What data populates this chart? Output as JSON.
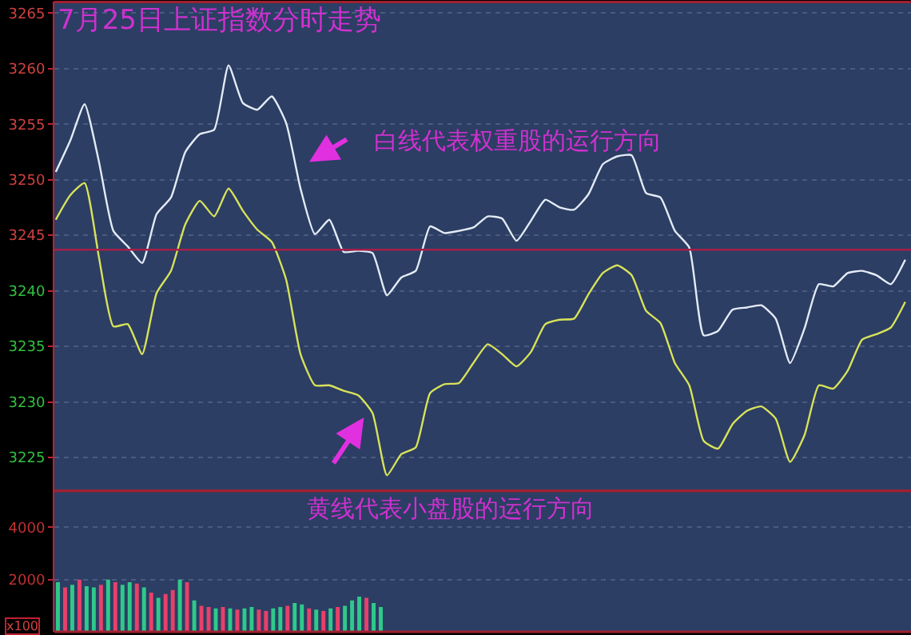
{
  "chart_data": [
    {
      "type": "line",
      "title": "7月25日上证指数分时走势",
      "categories": [
        null,
        null,
        null,
        null,
        null,
        null,
        null,
        null,
        null,
        null,
        null,
        null,
        null,
        null,
        null,
        null,
        null,
        null,
        null,
        null,
        null,
        null,
        null,
        null,
        null,
        null,
        null,
        null,
        null,
        null,
        null,
        null,
        null,
        null,
        null,
        null,
        null,
        null,
        null,
        null,
        null,
        null,
        null,
        null,
        null,
        null,
        null,
        null,
        null,
        null,
        null,
        null,
        null,
        null,
        null,
        null,
        null,
        null,
        null,
        null
      ],
      "series": [
        {
          "color": "#e4ebf7",
          "values": [
            3250.7,
            3253.5,
            3256.8,
            3251.6,
            3245.4,
            3244.0,
            3242.5,
            3246.9,
            3248.4,
            3252.5,
            3254.1,
            3254.5,
            3260.3,
            3256.9,
            3256.3,
            3257.5,
            3255.1,
            3249.2,
            3245.1,
            3246.4,
            3243.5,
            3243.6,
            3243.4,
            3239.6,
            3241.2,
            3241.8,
            3245.8,
            3245.2,
            3245.4,
            3245.7,
            3246.7,
            3246.5,
            3244.5,
            3246.3,
            3248.2,
            3247.5,
            3247.3,
            3248.7,
            3251.4,
            3252.1,
            3252.2,
            3248.8,
            3248.4,
            3245.4,
            3243.9,
            3236.0,
            3236.4,
            3238.3,
            3238.5,
            3238.7,
            3237.5,
            3233.5,
            3236.6,
            3240.6,
            3240.4,
            3241.6,
            3241.8,
            3241.4,
            3240.6,
            3242.8
          ]
        },
        {
          "color": "#d8e25a",
          "values": [
            3246.4,
            3248.6,
            3249.7,
            3243.0,
            3236.8,
            3237.0,
            3234.3,
            3239.8,
            3241.8,
            3246.0,
            3248.1,
            3246.7,
            3249.2,
            3247.2,
            3245.5,
            3244.4,
            3241.0,
            3234.3,
            3231.5,
            3231.5,
            3231.0,
            3230.6,
            3229.0,
            3223.4,
            3225.3,
            3225.9,
            3230.8,
            3231.6,
            3231.7,
            3233.5,
            3235.2,
            3234.3,
            3233.2,
            3234.5,
            3237.0,
            3237.4,
            3237.5,
            3239.7,
            3241.6,
            3242.3,
            3241.4,
            3238.2,
            3237.1,
            3233.5,
            3231.5,
            3226.5,
            3225.8,
            3228.0,
            3229.2,
            3229.6,
            3228.5,
            3224.6,
            3227.0,
            3231.5,
            3231.2,
            3232.8,
            3235.6,
            3236.1,
            3236.7,
            3239.0
          ]
        }
      ],
      "ylim": [
        3222,
        3266
      ],
      "yticks": [
        3225,
        3230,
        3235,
        3240,
        3245,
        3250,
        3255,
        3260,
        3265
      ],
      "ref_lines": [
        {
          "axis": "y",
          "value": 3243.7,
          "color": "#a3204a"
        }
      ],
      "annotations": [
        "白线代表权重股的运行方向",
        "黄线代表小盘股的运行方向"
      ],
      "grid": "y",
      "tick_labels": "y",
      "line_style": "solid",
      "marker": "none"
    },
    {
      "type": "bar",
      "categories": [
        null,
        null,
        null,
        null,
        null,
        null,
        null,
        null,
        null,
        null,
        null,
        null,
        null,
        null,
        null,
        null,
        null,
        null,
        null,
        null,
        null,
        null,
        null,
        null,
        null,
        null,
        null,
        null,
        null,
        null,
        null,
        null,
        null,
        null,
        null,
        null,
        null,
        null,
        null,
        null,
        null,
        null,
        null,
        null,
        null,
        null,
        null,
        null,
        null,
        null,
        null,
        null,
        null,
        null,
        null,
        null,
        null,
        null,
        null,
        null,
        null,
        null,
        null,
        null,
        null,
        null,
        null,
        null,
        null,
        null,
        null,
        null,
        null,
        null,
        null,
        null,
        null,
        null,
        null,
        null,
        null,
        null,
        null,
        null,
        null,
        null,
        null,
        null,
        null,
        null,
        null,
        null,
        null,
        null,
        null,
        null,
        null,
        null,
        null,
        null,
        null,
        null,
        null,
        null,
        null,
        null,
        null,
        null,
        null,
        null,
        null,
        null,
        null,
        null,
        null,
        null,
        null,
        null,
        null,
        null
      ],
      "values": [
        1900,
        1700,
        1800,
        2000,
        1750,
        1700,
        1800,
        2000,
        1900,
        1800,
        1900,
        1850,
        1700,
        1500,
        1300,
        1450,
        1600,
        2000,
        1900,
        1200,
        1000,
        950,
        900,
        950,
        900,
        850,
        900,
        950,
        850,
        800,
        900,
        950,
        1000,
        1100,
        1050,
        900,
        850,
        800,
        900,
        950,
        1000,
        1200,
        1350,
        1300,
        1100,
        950,
        null,
        null,
        null,
        null,
        null,
        null,
        null,
        null,
        null,
        null,
        null,
        null,
        null,
        null,
        null,
        null,
        null,
        null,
        null,
        null,
        null,
        null,
        null,
        null,
        null,
        null,
        null,
        null,
        null,
        null,
        null,
        null,
        null,
        null,
        null,
        null,
        null,
        null,
        null,
        null,
        null,
        null,
        null,
        null,
        null,
        null,
        null,
        null,
        null,
        null,
        null,
        null,
        null,
        null,
        null,
        null,
        null,
        null,
        null,
        null,
        null,
        null,
        null,
        null,
        null,
        null,
        null,
        null,
        null,
        null,
        null,
        null,
        null,
        null
      ],
      "colors": [
        "#2fc98a",
        "#e8406a",
        "#2fc98a",
        "#e8406a",
        "#2fc98a",
        "#2fc98a",
        "#e8406a",
        "#2fc98a",
        "#e8406a",
        "#2fc98a",
        "#2fc98a",
        "#e8406a",
        "#2fc98a",
        "#e8406a",
        "#2fc98a",
        "#e8406a",
        "#e8406a",
        "#2fc98a",
        "#e8406a",
        "#2fc98a",
        "#e8406a",
        "#e8406a",
        "#2fc98a",
        "#e8406a",
        "#2fc98a",
        "#e8406a",
        "#2fc98a",
        "#2fc98a",
        "#e8406a",
        "#e8406a",
        "#2fc98a",
        "#2fc98a",
        "#e8406a",
        "#2fc98a",
        "#2fc98a",
        "#e8406a",
        "#2fc98a",
        "#e8406a",
        "#2fc98a",
        "#e8406a",
        "#2fc98a",
        "#2fc98a",
        "#2fc98a",
        "#e8406a",
        "#2fc98a",
        "#2fc98a",
        "#2fc98a",
        "#2fc98a",
        "#2fc98a",
        "#2fc98a",
        "#2fc98a",
        "#2fc98a",
        "#2fc98a",
        "#2fc98a",
        "#2fc98a",
        "#2fc98a",
        "#2fc98a",
        "#2fc98a",
        "#2fc98a",
        "#2fc98a",
        "#2fc98a",
        "#2fc98a",
        "#2fc98a",
        "#2fc98a",
        "#2fc98a",
        "#2fc98a",
        "#2fc98a",
        "#2fc98a",
        "#2fc98a",
        "#2fc98a",
        "#2fc98a",
        "#2fc98a",
        "#2fc98a",
        "#2fc98a",
        "#2fc98a",
        "#2fc98a",
        "#2fc98a",
        "#2fc98a",
        "#2fc98a",
        "#2fc98a",
        "#2fc98a",
        "#2fc98a",
        "#2fc98a",
        "#2fc98a",
        "#2fc98a",
        "#2fc98a",
        "#2fc98a",
        "#2fc98a",
        "#2fc98a",
        "#2fc98a",
        "#2fc98a",
        "#2fc98a",
        "#2fc98a",
        "#2fc98a",
        "#2fc98a",
        "#2fc98a",
        "#2fc98a",
        "#2fc98a",
        "#2fc98a",
        "#2fc98a",
        "#2fc98a",
        "#2fc98a",
        "#2fc98a",
        "#2fc98a",
        "#2fc98a",
        "#2fc98a",
        "#2fc98a",
        "#2fc98a",
        "#2fc98a",
        "#2fc98a",
        "#2fc98a",
        "#2fc98a",
        "#2fc98a",
        "#2fc98a",
        "#2fc98a",
        "#2fc98a",
        "#2fc98a",
        "#2fc98a",
        "#2fc98a",
        "#2fc98a"
      ],
      "ylim": [
        0,
        5400
      ],
      "yticks": [
        2000,
        4000
      ],
      "annotations": [
        "x100"
      ],
      "grid": "y",
      "tick_labels": "y"
    }
  ]
}
